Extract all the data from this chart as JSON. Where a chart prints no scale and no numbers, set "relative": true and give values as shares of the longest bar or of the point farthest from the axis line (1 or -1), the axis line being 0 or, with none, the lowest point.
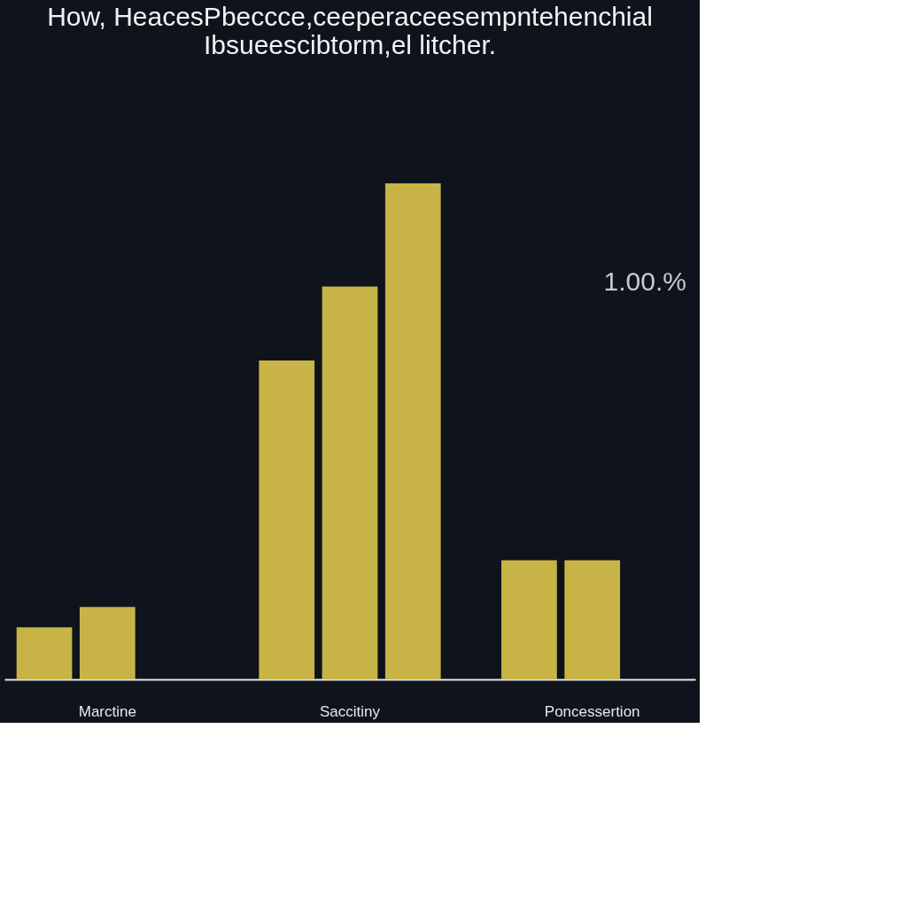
{
  "chart_data": {
    "type": "bar",
    "title": "How, HeacesPbeccce,ceeperaceesempntehenchial Ibsueescibtorm,el litcher.",
    "categories": [
      "Marctine",
      "Saccitiny",
      "Poncessertion"
    ],
    "relative": true,
    "series": [
      {
        "color": "#c8b446",
        "values": [
          0.105,
          0.643,
          0.24
        ]
      },
      {
        "color": "#c8b446",
        "values": [
          0.146,
          0.792,
          0.24
        ]
      },
      {
        "color": "#c8b446",
        "values": [
          null,
          1,
          null
        ]
      }
    ],
    "grid": false,
    "annotations": [
      "1.00.%"
    ]
  }
}
